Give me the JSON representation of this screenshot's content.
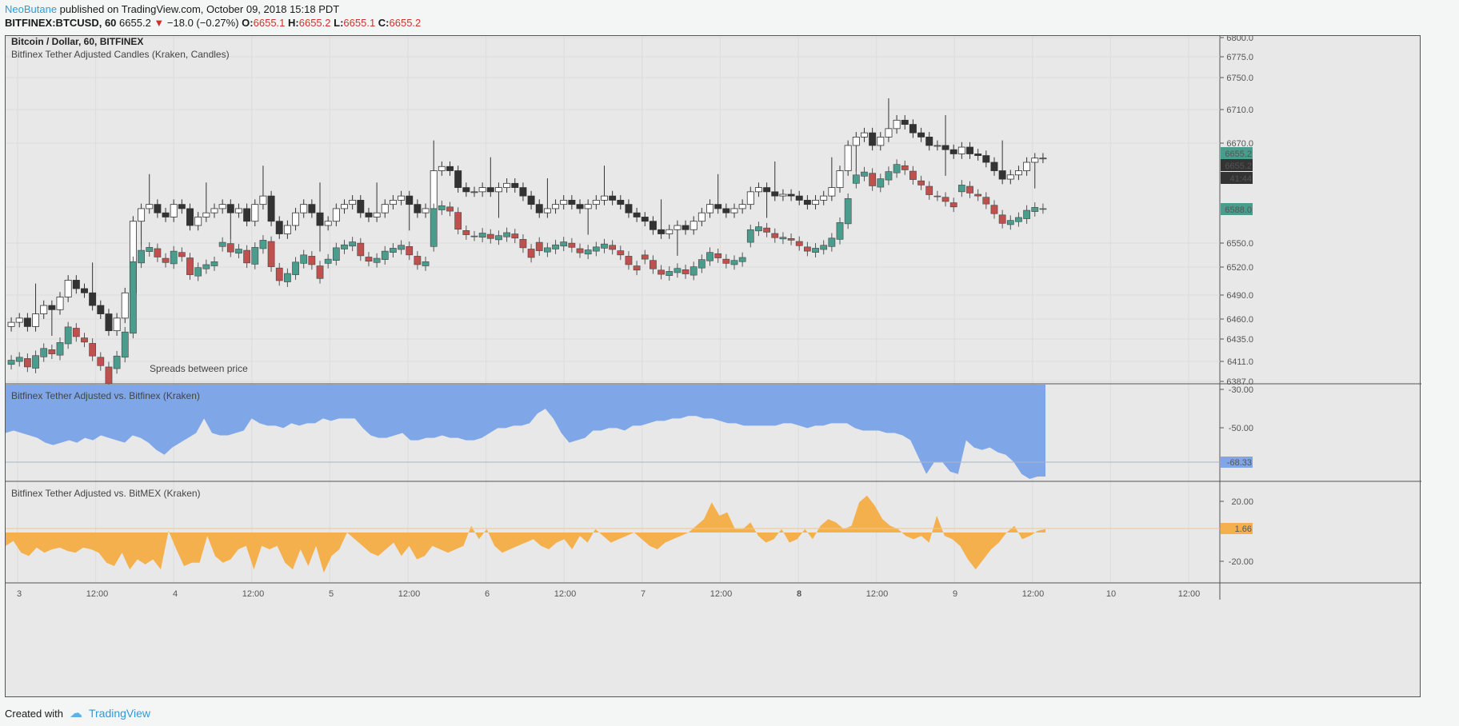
{
  "header": {
    "author": "NeoButane",
    "published": " published on TradingView.com, October 09, 2018 15:18 PDT",
    "symbol": "BITFINEX:BTCUSD, 60",
    "last": "6655.2",
    "change": "−18.0 (−0.27%)",
    "o_label": "O:",
    "o_value": "6655.1",
    "h_label": "H:",
    "h_value": "6655.2",
    "l_label": "L:",
    "l_value": "6655.1",
    "c_label": "C:",
    "c_value": "6655.2"
  },
  "footer": {
    "created_with": "Created with",
    "brand": "TradingView"
  },
  "colors": {
    "up": "#4a9c8c",
    "down": "#c0504d",
    "spread_blue": "#7fa6e6",
    "spread_orange": "#f5b04e",
    "accent": "#2e9ad8"
  },
  "chart_data": [
    {
      "type": "candlestick",
      "title": "Bitcoin / Dollar, 60, BITFINEX",
      "subtitle": "Bitfinex Tether Adjusted Candles (Kraken, Candles)",
      "annotation": "Spreads between price",
      "y_ticks": [
        "6800.0",
        "6775.0",
        "6750.0",
        "6710.0",
        "6670.0",
        "6550.0",
        "6520.0",
        "6490.0",
        "6460.0",
        "6435.0",
        "6411.0",
        "6387.0"
      ],
      "price_labels": [
        {
          "value": "6655.2",
          "color": "#4a9c8c"
        },
        {
          "value": "6655.2",
          "color": "#333333"
        },
        {
          "value": "41:44",
          "color": "#333333"
        },
        {
          "value": "6588.0",
          "color": "#4a9c8c"
        }
      ],
      "ylim": [
        6387,
        6800
      ]
    },
    {
      "type": "area",
      "title": "Bitfinex Tether Adjusted vs. Bitfinex (Kraken)",
      "y_ticks": [
        "-30.00",
        "-50.00"
      ],
      "last_value": "-68.33",
      "ylim": [
        -70,
        -30
      ],
      "values": [
        -50,
        -49,
        -50,
        -51,
        -52,
        -54,
        -55,
        -54,
        -53,
        -54,
        -52,
        -53,
        -51,
        -52,
        -53,
        -54,
        -51,
        -52,
        -54,
        -57,
        -59,
        -56,
        -54,
        -52,
        -50,
        -44,
        -50,
        -51,
        -51,
        -50,
        -49,
        -44,
        -46,
        -47,
        -47,
        -48,
        -46,
        -47,
        -46,
        -46,
        -44,
        -45,
        -44,
        -44,
        -44,
        -48,
        -51,
        -52,
        -52,
        -51,
        -50,
        -53,
        -53,
        -52,
        -52,
        -51,
        -52,
        -52,
        -53,
        -53,
        -52,
        -50,
        -48,
        -48,
        -47,
        -47,
        -46,
        -42,
        -40,
        -44,
        -50,
        -54,
        -53,
        -52,
        -49,
        -49,
        -48,
        -48,
        -49,
        -47,
        -47,
        -46,
        -45,
        -45,
        -44,
        -44,
        -43,
        -43,
        -44,
        -44,
        -45,
        -46,
        -46,
        -47,
        -47,
        -47,
        -47,
        -47,
        -46,
        -46,
        -47,
        -48,
        -47,
        -47,
        -46,
        -46,
        -46,
        -48,
        -49,
        -49,
        -49,
        -50,
        -50,
        -51,
        -53,
        -60,
        -67,
        -62,
        -62,
        -66,
        -67,
        -53,
        -56,
        -57,
        -56,
        -58,
        -59,
        -62,
        -67,
        -69,
        -68,
        -68
      ]
    },
    {
      "type": "area",
      "title": "Bitfinex Tether Adjusted vs. BitMEX (Kraken)",
      "y_ticks": [
        "20.00",
        "-20.00"
      ],
      "last_value": "1.66",
      "ylim": [
        -30,
        30
      ],
      "values": [
        -8,
        -5,
        -12,
        -14,
        -9,
        -12,
        -10,
        -9,
        -11,
        -12,
        -9,
        -10,
        -12,
        -18,
        -20,
        -12,
        -22,
        -16,
        -19,
        -16,
        -22,
        1,
        -10,
        -20,
        -18,
        -18,
        -2,
        -14,
        -18,
        -16,
        -10,
        -8,
        -22,
        -8,
        -10,
        -8,
        -18,
        -22,
        -10,
        -20,
        -8,
        -24,
        -14,
        -10,
        0,
        -4,
        -8,
        -12,
        -14,
        -10,
        -6,
        -14,
        -8,
        -16,
        -14,
        -8,
        -10,
        -12,
        -10,
        -8,
        4,
        -4,
        2,
        -8,
        -12,
        -10,
        -8,
        -6,
        -4,
        -8,
        -10,
        -6,
        -4,
        -10,
        -2,
        -6,
        2,
        -2,
        -6,
        -4,
        -2,
        0,
        -4,
        -8,
        -10,
        -6,
        -4,
        -2,
        0,
        4,
        8,
        18,
        10,
        12,
        2,
        2,
        6,
        -2,
        -6,
        -4,
        2,
        -6,
        -4,
        2,
        -4,
        4,
        8,
        6,
        2,
        4,
        18,
        22,
        16,
        8,
        4,
        2,
        -2,
        -4,
        -2,
        -6,
        10,
        -2,
        -4,
        -8,
        -16,
        -22,
        -16,
        -10,
        -6,
        0,
        4,
        -4,
        -2,
        1,
        2
      ]
    }
  ],
  "x_axis": {
    "labels": [
      "3",
      "12:00",
      "4",
      "12:00",
      "5",
      "12:00",
      "6",
      "12:00",
      "7",
      "12:00",
      "8",
      "12:00",
      "9",
      "12:00",
      "10",
      "12:00"
    ]
  }
}
